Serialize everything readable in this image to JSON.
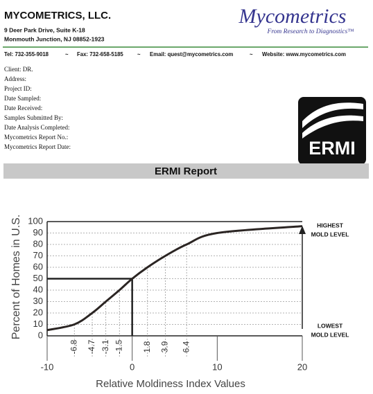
{
  "header": {
    "company": "MYCOMETRICS, LLC.",
    "address_line1": "9 Deer Park Drive, Suite K-18",
    "address_line2": "Monmouth Junction, NJ 08852-1923",
    "logo": "Mycometrics",
    "tagline": "From Research to Diagnostics™"
  },
  "contact": {
    "items": [
      "Tel:  732-355-9018",
      "Fax: 732-658-5185",
      "Email: quest@mycometrics.com",
      "Website: www.mycometrics.com"
    ],
    "separator": "~"
  },
  "client_fields": [
    "Client: DR.",
    "Address:",
    "Project ID:",
    "Date Sampled:",
    "Date Received:",
    "Samples Submitted By:",
    "Date Analysis Completed:",
    "Mycometrics Report No.:",
    "Mycometrics Report Date:"
  ],
  "ermi_logo": "ERMI",
  "report_title": "ERMI Report",
  "chart_data": {
    "type": "line",
    "x_label": "Relative Moldiness Index Values",
    "y_label": "Percent of Homes in U.S.",
    "x": [
      -10,
      -6.8,
      -4.7,
      -3.1,
      -1.5,
      0,
      1.8,
      3.9,
      6.4,
      10,
      20
    ],
    "values": [
      5,
      10,
      20,
      30,
      40,
      50,
      60,
      70,
      80,
      90,
      96
    ],
    "color": "#2b2523",
    "xlim": [
      -10,
      20
    ],
    "ylim": [
      0,
      100
    ],
    "xticks": [
      -10,
      0,
      10,
      20
    ],
    "percentile_ticks": [
      -6.8,
      -4.7,
      -3.1,
      -1.5,
      1.8,
      3.9,
      6.4
    ],
    "yticks": [
      0,
      10,
      20,
      30,
      40,
      50,
      60,
      70,
      80,
      90,
      100
    ],
    "grid": true,
    "annotations": [
      "HIGHEST",
      "MOLD LEVEL",
      "LOWEST",
      "MOLD LEVEL"
    ]
  }
}
